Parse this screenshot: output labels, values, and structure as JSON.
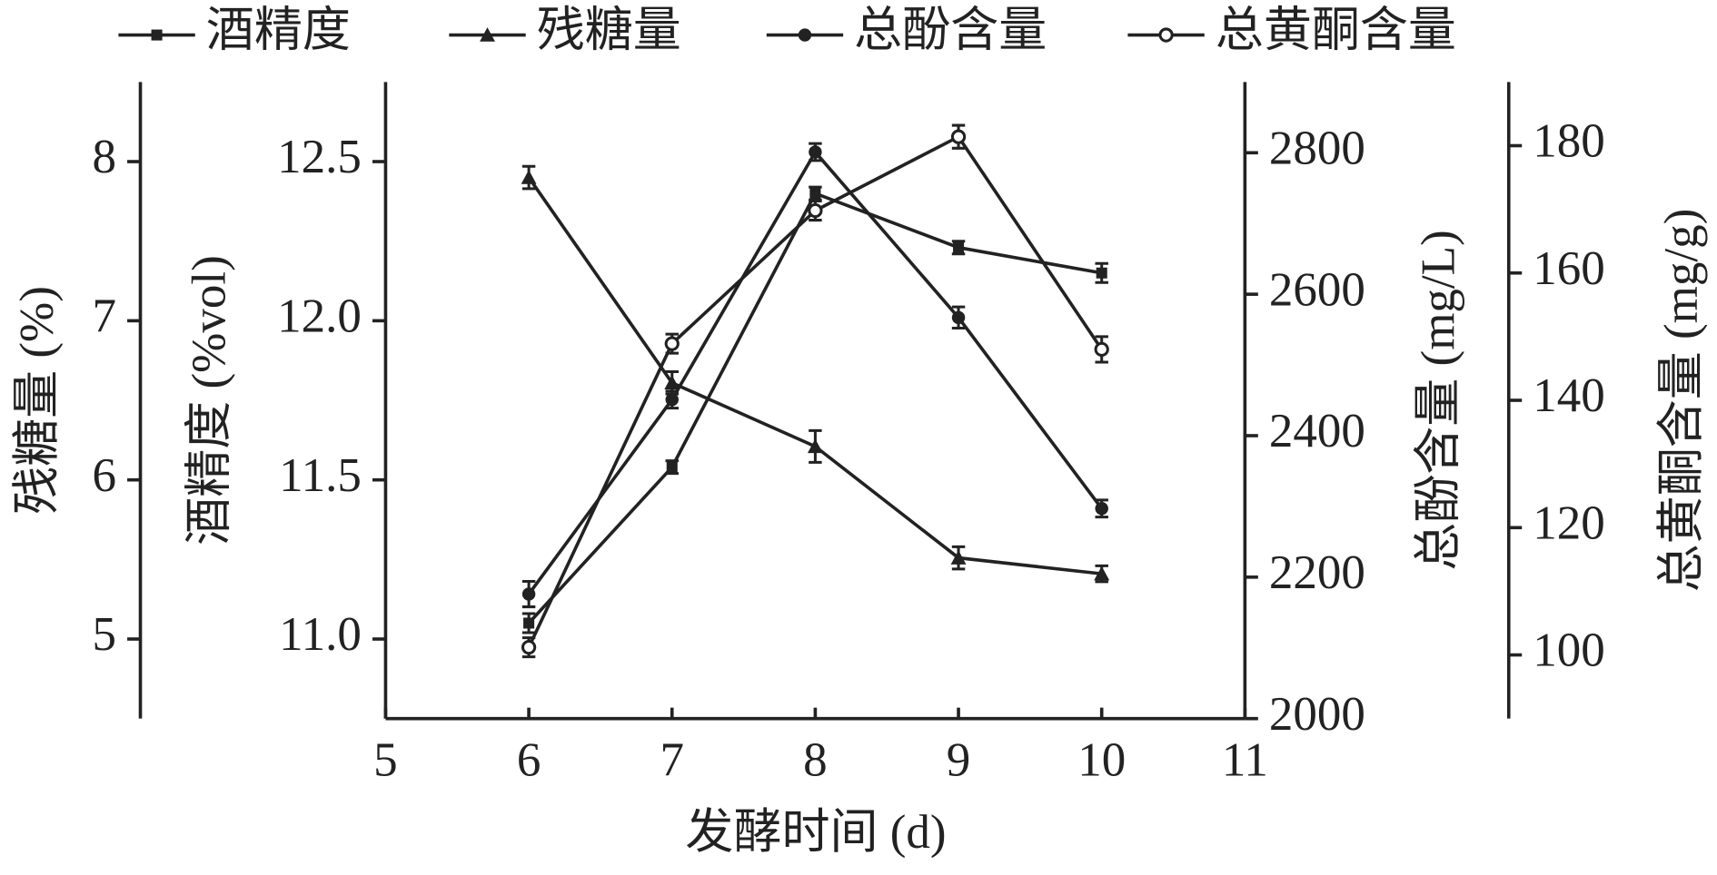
{
  "chart_data": {
    "type": "line",
    "x": [
      6,
      7,
      8,
      9,
      10
    ],
    "xlim": [
      5,
      11
    ],
    "xticks": [
      5,
      6,
      7,
      8,
      9,
      10,
      11
    ],
    "xlabel": "发酵时间 (d)",
    "ylim": [
      10.75,
      12.75
    ],
    "yticks": [
      {
        "value": 11,
        "label": "11.0"
      },
      11.5,
      {
        "value": 12,
        "label": "12.0"
      },
      12.5
    ],
    "ylabel": "酒精度 (%vol)",
    "y2lim": [
      4.5,
      8.5
    ],
    "y2ticks": [
      5,
      6,
      7,
      8
    ],
    "y2label": "残糖量 (%)",
    "y3lim": [
      2000,
      2900
    ],
    "y3ticks": [
      2000,
      2200,
      2400,
      2600,
      2800
    ],
    "y3label": "总酚含量 (mg/L)",
    "y4lim": [
      90,
      190
    ],
    "y4ticks": [
      100,
      120,
      140,
      160,
      180
    ],
    "y4label": "总黄酮含量 (mg/g)",
    "series": [
      {
        "name": "酒精度",
        "axis": "y",
        "marker": "square",
        "color": "#222",
        "values": [
          11.05,
          11.54,
          12.4,
          12.23,
          12.15
        ],
        "errors": [
          0.03,
          0.02,
          0.02,
          0.02,
          0.03
        ]
      },
      {
        "name": "残糖量",
        "axis": "y2",
        "marker": "triangle",
        "color": "#222",
        "values": [
          7.9,
          6.61,
          6.21,
          5.51,
          5.41
        ],
        "errors": [
          0.07,
          0.07,
          0.1,
          0.07,
          0.05
        ]
      },
      {
        "name": "总酚含量",
        "axis": "y3",
        "marker": "circle",
        "color": "#222",
        "values": [
          2176,
          2451,
          2801,
          2567,
          2297
        ],
        "errors": [
          18,
          12,
          12,
          15,
          12
        ]
      },
      {
        "name": "总黄酮含量",
        "axis": "y4",
        "marker": "open-circle",
        "color": "#222",
        "values": [
          101.2,
          148.9,
          169.8,
          181.4,
          148
        ],
        "errors": [
          1.5,
          1.5,
          1.5,
          1.8,
          2
        ]
      }
    ]
  }
}
